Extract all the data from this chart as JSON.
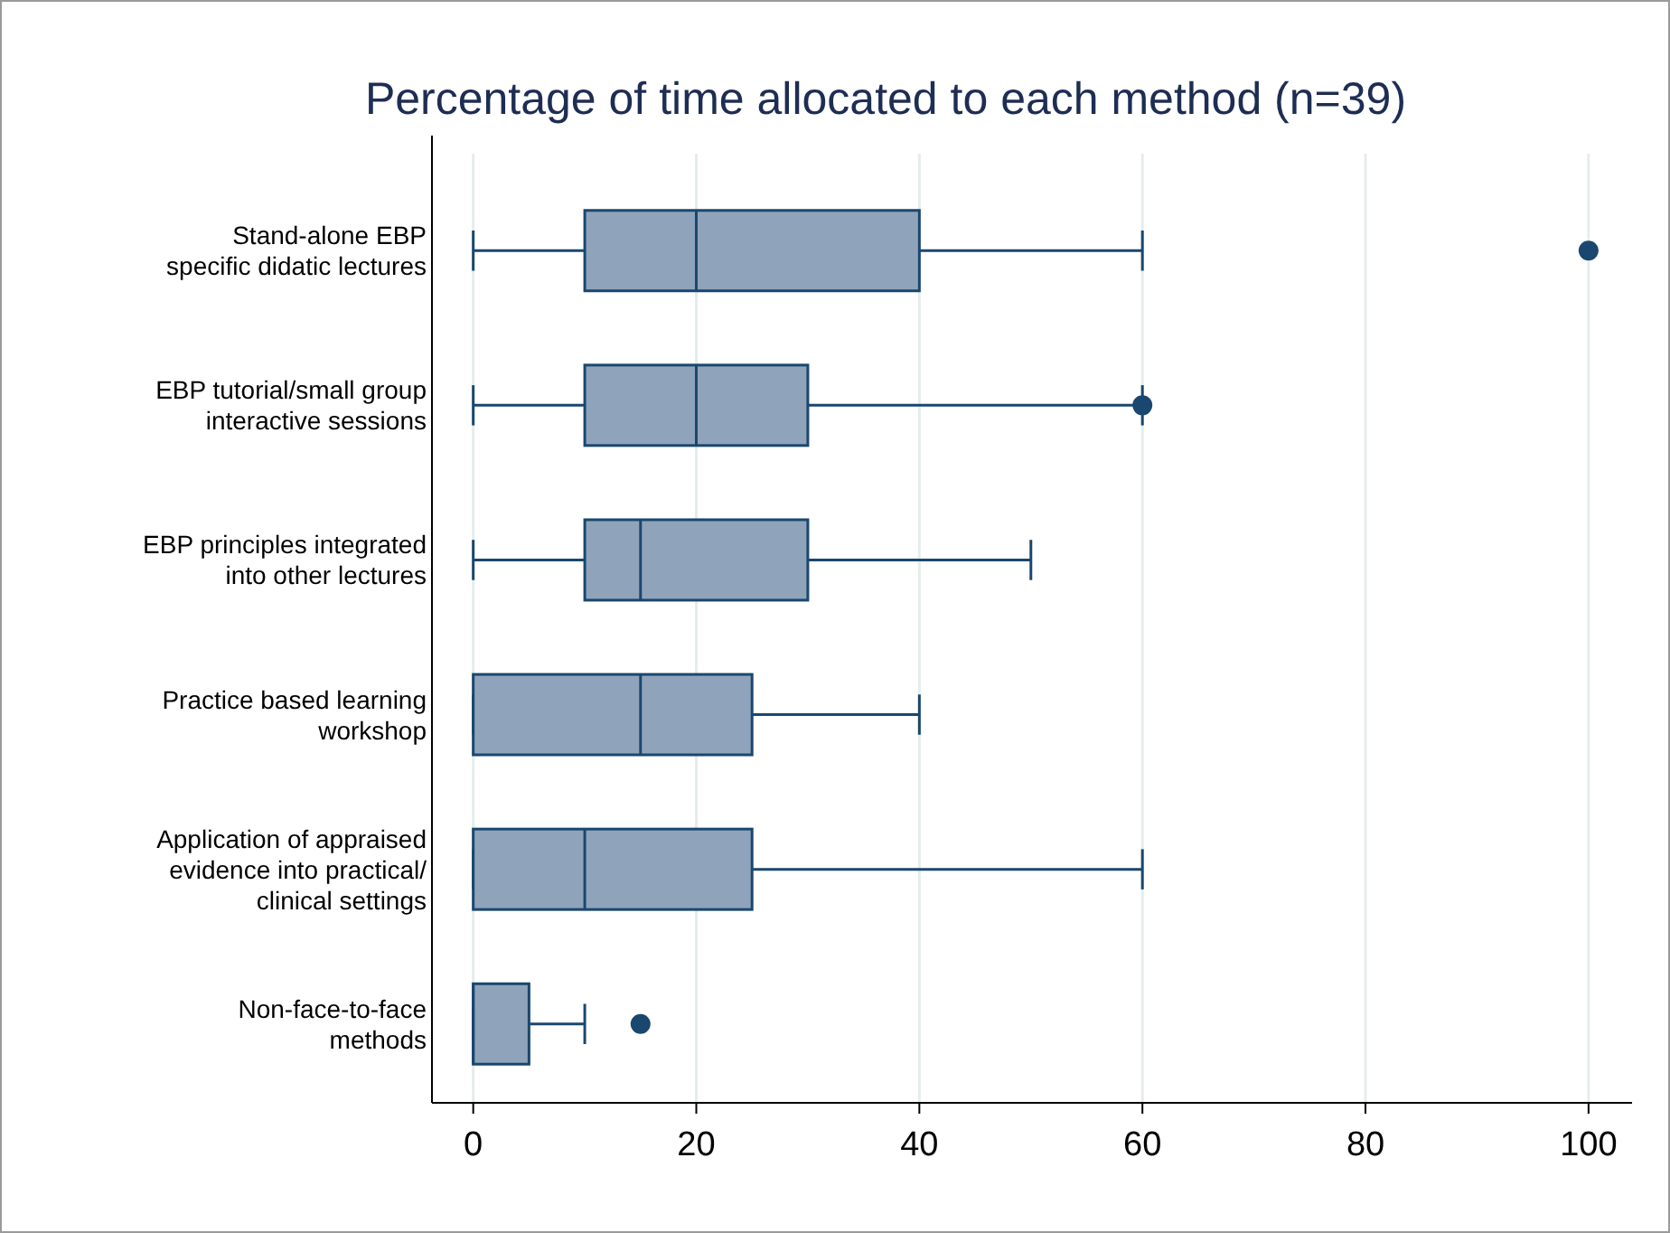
{
  "chart_data": {
    "type": "box",
    "orientation": "horizontal",
    "title": "Percentage of time allocated to each method (n=39)",
    "categories": [
      "Stand-alone EBP\nspecific didatic lectures",
      "EBP tutorial/small group\ninteractive sessions",
      "EBP principles integrated\ninto other lectures",
      "Practice based learning\nworkshop",
      "Application of appraised\nevidence into practical/\nclinical settings",
      "Non-face-to-face\nmethods"
    ],
    "boxes": [
      {
        "low": 0,
        "q1": 10,
        "median": 20,
        "q3": 40,
        "high": 60,
        "outliers": [
          100
        ]
      },
      {
        "low": 0,
        "q1": 10,
        "median": 20,
        "q3": 30,
        "high": 60,
        "outliers": [
          60
        ]
      },
      {
        "low": 0,
        "q1": 10,
        "median": 15,
        "q3": 30,
        "high": 50
      },
      {
        "low": 0,
        "q1": 0,
        "median": 15,
        "q3": 25,
        "high": 40
      },
      {
        "low": 0,
        "q1": 0,
        "median": 10,
        "q3": 25,
        "high": 60
      },
      {
        "low": 0,
        "q1": 0,
        "median": 0,
        "q3": 5,
        "high": 10,
        "outliers": [
          15
        ]
      }
    ],
    "color": "#8fa4ba",
    "xlim": [
      -3.7,
      103.9
    ],
    "xticks": [
      0,
      20,
      40,
      60,
      80,
      100
    ],
    "grid": "x"
  }
}
